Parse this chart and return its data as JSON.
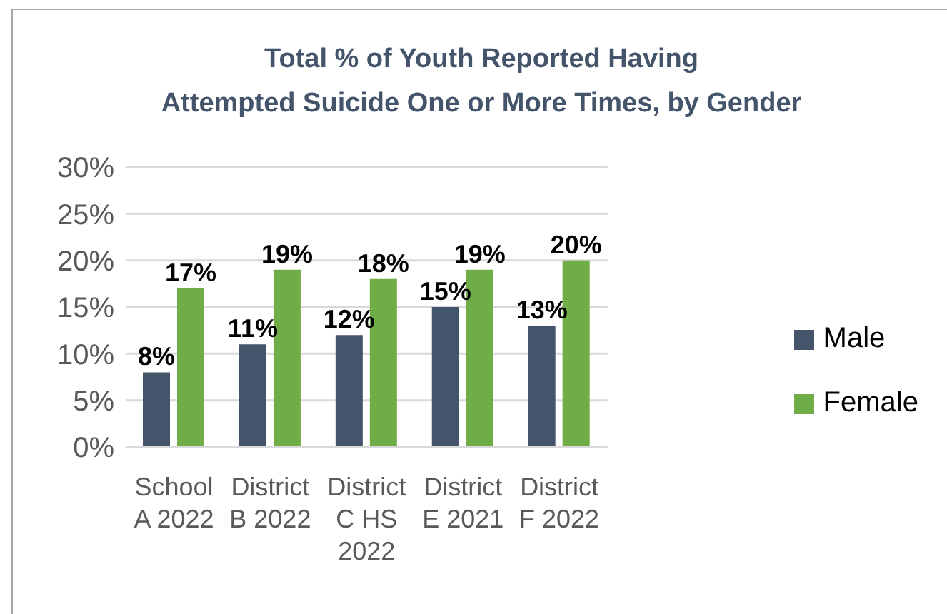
{
  "chart_data": {
    "type": "bar",
    "title": "Total % of Youth Reported Having\nAttempted Suicide One or More Times, by Gender",
    "categories": [
      "School A 2022",
      "District B 2022",
      "District C HS 2022",
      "District E 2021",
      "District F 2022"
    ],
    "series": [
      {
        "name": "Male",
        "color": "#44546a",
        "values": [
          8,
          11,
          12,
          15,
          13
        ],
        "value_labels": [
          "8%",
          "11%",
          "12%",
          "15%",
          "13%"
        ]
      },
      {
        "name": "Female",
        "color": "#70ad47",
        "values": [
          17,
          19,
          18,
          19,
          20
        ],
        "value_labels": [
          "17%",
          "19%",
          "18%",
          "19%",
          "20%"
        ]
      }
    ],
    "ylim": [
      0,
      30
    ],
    "yticks": [
      {
        "value": 0,
        "label": "0%"
      },
      {
        "value": 5,
        "label": "5%"
      },
      {
        "value": 10,
        "label": "10%"
      },
      {
        "value": 15,
        "label": "15%"
      },
      {
        "value": 20,
        "label": "20%"
      },
      {
        "value": 25,
        "label": "25%"
      },
      {
        "value": 30,
        "label": "30%"
      }
    ],
    "grid": "y",
    "legend": "right"
  }
}
